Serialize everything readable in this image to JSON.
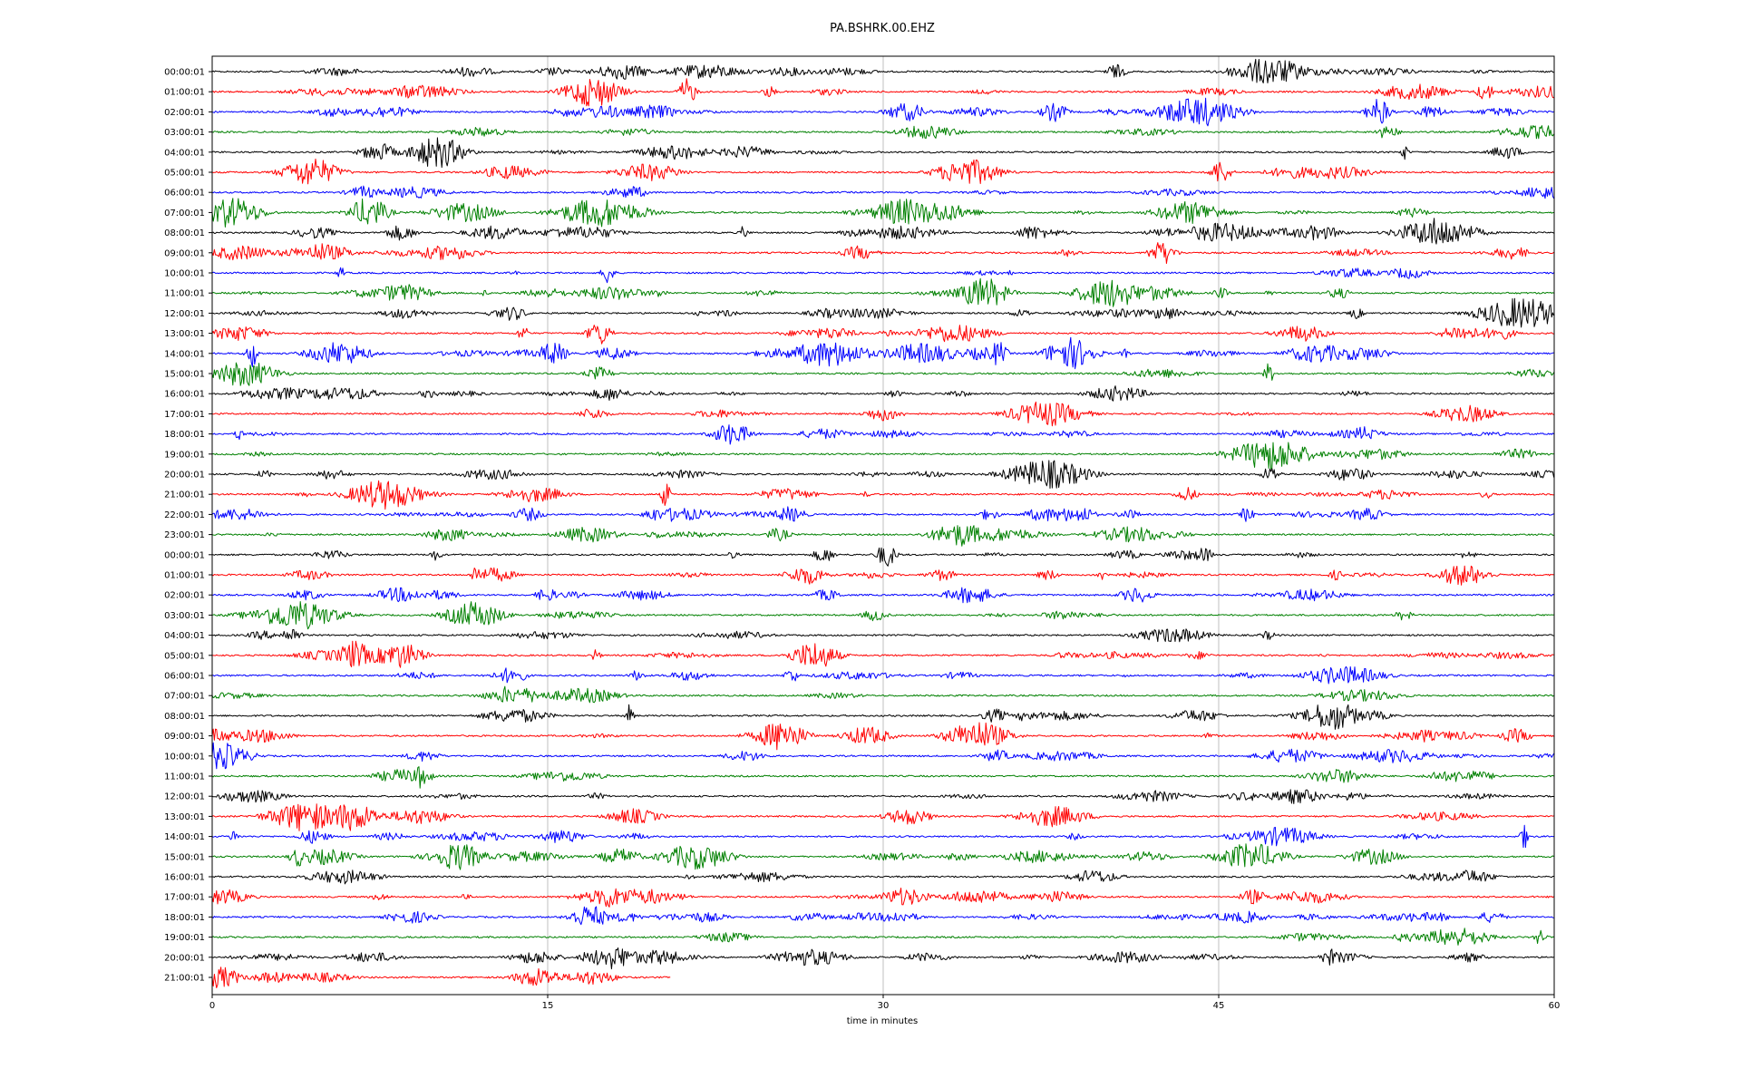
{
  "chart_data": {
    "type": "line",
    "title": "PA.BSHRK.00.EHZ",
    "xlabel": "time in minutes",
    "ylabel": "",
    "xlim": [
      0,
      60
    ],
    "x_ticks": [
      "0",
      "15",
      "30",
      "45",
      "60"
    ],
    "grid": "vertical lines at 15, 30, 45",
    "color_cycle": [
      "#000000",
      "#ff0000",
      "#0000ff",
      "#008000"
    ],
    "y_tick_labels": [
      "00:00:01",
      "01:00:01",
      "02:00:01",
      "03:00:01",
      "04:00:01",
      "05:00:01",
      "06:00:01",
      "07:00:01",
      "08:00:01",
      "09:00:01",
      "10:00:01",
      "11:00:01",
      "12:00:01",
      "13:00:01",
      "14:00:01",
      "15:00:01",
      "16:00:01",
      "17:00:01",
      "18:00:01",
      "19:00:01",
      "20:00:01",
      "21:00:01",
      "22:00:01",
      "23:00:01",
      "00:00:01",
      "01:00:01",
      "02:00:01",
      "03:00:01",
      "04:00:01",
      "05:00:01",
      "06:00:01",
      "07:00:01",
      "08:00:01",
      "09:00:01",
      "10:00:01",
      "11:00:01",
      "12:00:01",
      "13:00:01",
      "14:00:01",
      "15:00:01",
      "16:00:01",
      "17:00:01",
      "18:00:01",
      "19:00:01",
      "20:00:01",
      "21:00:01"
    ],
    "last_trace_end_minute": 20.5
  }
}
